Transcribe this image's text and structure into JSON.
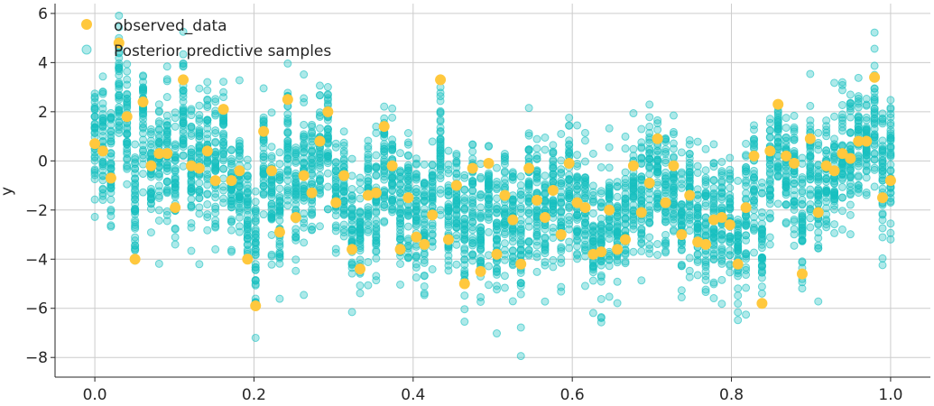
{
  "chart_data": {
    "type": "scatter",
    "title": "",
    "xlabel": "",
    "ylabel": "y",
    "xlim": [
      -0.05,
      1.05
    ],
    "ylim": [
      -8.8,
      6.4
    ],
    "xticks": [
      0.0,
      0.2,
      0.4,
      0.6,
      0.8,
      1.0
    ],
    "xtick_labels": [
      "0.0",
      "0.2",
      "0.4",
      "0.6",
      "0.8",
      "1.0"
    ],
    "yticks": [
      -8,
      -6,
      -4,
      -2,
      0,
      2,
      4,
      6
    ],
    "ytick_labels": [
      "−8",
      "−6",
      "−4",
      "−2",
      "0",
      "2",
      "4",
      "6"
    ],
    "grid": true,
    "legend_position": "top-left",
    "series": [
      {
        "name": "observed_data",
        "color": "#ffc83d",
        "x": [
          0.0,
          0.0101,
          0.0202,
          0.0303,
          0.0404,
          0.0505,
          0.0606,
          0.0707,
          0.0808,
          0.0909,
          0.101,
          0.1111,
          0.1212,
          0.1313,
          0.1414,
          0.1515,
          0.1616,
          0.1717,
          0.1818,
          0.1919,
          0.202,
          0.2121,
          0.2222,
          0.2323,
          0.2424,
          0.2525,
          0.2626,
          0.2727,
          0.2828,
          0.2929,
          0.303,
          0.3131,
          0.3232,
          0.3333,
          0.3434,
          0.3535,
          0.3636,
          0.3737,
          0.3838,
          0.3939,
          0.404,
          0.4141,
          0.4242,
          0.4343,
          0.4444,
          0.4545,
          0.4646,
          0.4747,
          0.4848,
          0.4949,
          0.5051,
          0.5152,
          0.5253,
          0.5354,
          0.5455,
          0.5556,
          0.5657,
          0.5758,
          0.5859,
          0.596,
          0.6061,
          0.6162,
          0.6263,
          0.6364,
          0.6465,
          0.6566,
          0.6667,
          0.6768,
          0.6869,
          0.697,
          0.7071,
          0.7172,
          0.7273,
          0.7374,
          0.7475,
          0.7576,
          0.7677,
          0.7778,
          0.7879,
          0.798,
          0.8081,
          0.8182,
          0.8283,
          0.8384,
          0.8485,
          0.8586,
          0.8687,
          0.8788,
          0.8889,
          0.899,
          0.9091,
          0.9192,
          0.9293,
          0.9394,
          0.9495,
          0.9596,
          0.9697,
          0.9798,
          0.9899,
          1.0
        ],
        "y": [
          0.7,
          0.4,
          -0.7,
          4.8,
          1.8,
          -4.0,
          2.4,
          -0.2,
          0.3,
          0.3,
          -1.9,
          3.3,
          -0.2,
          -0.3,
          0.4,
          -0.8,
          2.1,
          -0.8,
          -0.4,
          -4.0,
          -5.9,
          1.2,
          -0.4,
          -2.9,
          2.5,
          -2.3,
          -0.6,
          -1.3,
          0.8,
          2.0,
          -1.7,
          -0.6,
          -3.6,
          -4.4,
          -1.4,
          -1.3,
          1.4,
          -0.2,
          -3.6,
          -1.5,
          -3.1,
          -3.4,
          -2.2,
          3.3,
          -3.2,
          -1.0,
          -5.0,
          -0.3,
          -4.5,
          -0.1,
          -3.8,
          -1.4,
          -2.4,
          -4.2,
          -0.3,
          -1.6,
          -2.3,
          -1.2,
          -3.0,
          -0.1,
          -1.7,
          -1.9,
          -3.8,
          -3.7,
          -2.0,
          -3.6,
          -3.2,
          -0.2,
          -2.1,
          -0.9,
          0.9,
          -1.7,
          -0.2,
          -3.0,
          -1.4,
          -3.3,
          -3.4,
          -2.4,
          -2.3,
          -2.6,
          -4.2,
          -1.9,
          0.2,
          -5.8,
          0.4,
          2.3,
          0.2,
          -0.1,
          -4.6,
          0.9,
          -2.1,
          -0.2,
          -0.4,
          0.3,
          0.1,
          0.8,
          0.8,
          3.4,
          -1.5,
          -0.8
        ]
      },
      {
        "name": "Posterior predictive samples",
        "color": "#17bfc0",
        "x": [],
        "y": [],
        "samples_per_x": 40
      }
    ]
  }
}
